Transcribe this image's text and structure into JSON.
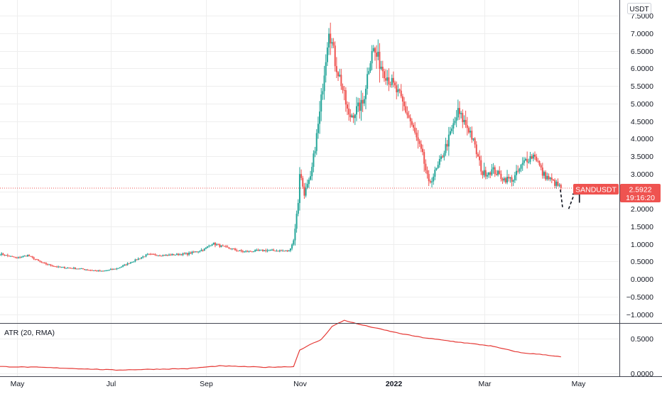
{
  "chart_data": [
    {
      "type": "candlestick",
      "symbol": "SANDUSDT",
      "currency_label": "USDT",
      "last_price": "2.5922",
      "countdown": "19:16:20",
      "price_line_value": 2.5922,
      "y_ticks": [
        "7.5000",
        "7.0000",
        "6.5000",
        "6.0000",
        "5.5000",
        "5.0000",
        "4.5000",
        "4.0000",
        "3.5000",
        "3.0000",
        "2.5000",
        "2.0000",
        "1.5000",
        "1.0000",
        "0.5000",
        "0.0000",
        "−0.5000",
        "−1.0000"
      ],
      "y_tick_values": [
        7.5,
        7.0,
        6.5,
        6.0,
        5.5,
        5.0,
        4.5,
        4.0,
        3.5,
        3.0,
        2.5,
        2.0,
        1.5,
        1.0,
        0.5,
        0.0,
        -0.5,
        -1.0
      ],
      "x_ticks": [
        "May",
        "Jul",
        "Sep",
        "Nov",
        "2022",
        "Mar",
        "May"
      ],
      "x_tick_dates": [
        "2021-05-01",
        "2021-07-01",
        "2021-09-01",
        "2021-11-01",
        "2022-01-01",
        "2022-03-01",
        "2022-05-01"
      ],
      "x_range": [
        "2021-04-20",
        "2022-05-28"
      ],
      "y_range": [
        -1.25,
        7.95
      ],
      "grid": true,
      "colors": {
        "up": "#26a69a",
        "down": "#ef5350",
        "price_label": "#ef5350",
        "atr_line": "#e53935",
        "grid": "#eeeeee",
        "axis_text": "#131722"
      },
      "close_path": [
        [
          "2021-04-20",
          0.72
        ],
        [
          "2021-05-01",
          0.6
        ],
        [
          "2021-05-08",
          0.68
        ],
        [
          "2021-05-18",
          0.45
        ],
        [
          "2021-05-28",
          0.34
        ],
        [
          "2021-06-10",
          0.3
        ],
        [
          "2021-06-25",
          0.22
        ],
        [
          "2021-07-05",
          0.3
        ],
        [
          "2021-07-15",
          0.5
        ],
        [
          "2021-07-25",
          0.7
        ],
        [
          "2021-08-05",
          0.68
        ],
        [
          "2021-08-20",
          0.72
        ],
        [
          "2021-08-31",
          0.85
        ],
        [
          "2021-09-05",
          1.02
        ],
        [
          "2021-09-12",
          0.92
        ],
        [
          "2021-09-25",
          0.78
        ],
        [
          "2021-10-10",
          0.82
        ],
        [
          "2021-10-25",
          0.8
        ],
        [
          "2021-10-28",
          1.1
        ],
        [
          "2021-10-31",
          2.2
        ],
        [
          "2021-11-01",
          3.05
        ],
        [
          "2021-11-04",
          2.45
        ],
        [
          "2021-11-08",
          2.85
        ],
        [
          "2021-11-14",
          4.7
        ],
        [
          "2021-11-20",
          7.2
        ],
        [
          "2021-11-24",
          6.2
        ],
        [
          "2021-11-28",
          5.6
        ],
        [
          "2021-12-03",
          4.6
        ],
        [
          "2021-12-12",
          5.0
        ],
        [
          "2021-12-18",
          6.6
        ],
        [
          "2021-12-25",
          6.0
        ],
        [
          "2022-01-05",
          5.2
        ],
        [
          "2022-01-12",
          4.5
        ],
        [
          "2022-01-20",
          3.5
        ],
        [
          "2022-01-24",
          2.7
        ],
        [
          "2022-01-30",
          3.2
        ],
        [
          "2022-02-06",
          4.0
        ],
        [
          "2022-02-12",
          4.75
        ],
        [
          "2022-02-20",
          4.2
        ],
        [
          "2022-02-28",
          3.0
        ],
        [
          "2022-03-07",
          3.1
        ],
        [
          "2022-03-14",
          2.85
        ],
        [
          "2022-03-20",
          2.85
        ],
        [
          "2022-03-28",
          3.4
        ],
        [
          "2022-04-03",
          3.55
        ],
        [
          "2022-04-08",
          3.0
        ],
        [
          "2022-04-14",
          2.8
        ],
        [
          "2022-04-20",
          2.5922
        ]
      ],
      "forecast_arrow": {
        "points": [
          [
            "2022-04-21",
            2.05
          ],
          [
            "2022-04-25",
            2.0
          ],
          [
            "2022-04-28",
            2.35
          ],
          [
            "2022-05-02",
            2.38
          ]
        ],
        "color": "#131722"
      }
    },
    {
      "type": "line",
      "indicator": "ATR (20, RMA)",
      "y_ticks": [
        "0.5000",
        "0.0000"
      ],
      "y_tick_values": [
        0.5,
        0.0
      ],
      "y_range": [
        -0.04,
        0.72
      ],
      "series": [
        {
          "color": "#e53935",
          "points": [
            [
              "2021-04-20",
              0.1
            ],
            [
              "2021-05-15",
              0.09
            ],
            [
              "2021-06-10",
              0.07
            ],
            [
              "2021-07-05",
              0.05
            ],
            [
              "2021-07-25",
              0.06
            ],
            [
              "2021-08-20",
              0.07
            ],
            [
              "2021-09-10",
              0.11
            ],
            [
              "2021-10-10",
              0.09
            ],
            [
              "2021-10-28",
              0.1
            ],
            [
              "2021-11-01",
              0.34
            ],
            [
              "2021-11-08",
              0.42
            ],
            [
              "2021-11-15",
              0.49
            ],
            [
              "2021-11-22",
              0.68
            ],
            [
              "2021-11-30",
              0.77
            ],
            [
              "2021-12-08",
              0.72
            ],
            [
              "2021-12-20",
              0.66
            ],
            [
              "2022-01-05",
              0.58
            ],
            [
              "2022-01-20",
              0.52
            ],
            [
              "2022-02-10",
              0.46
            ],
            [
              "2022-03-05",
              0.4
            ],
            [
              "2022-03-25",
              0.3
            ],
            [
              "2022-04-10",
              0.27
            ],
            [
              "2022-04-20",
              0.24
            ]
          ]
        }
      ]
    }
  ]
}
